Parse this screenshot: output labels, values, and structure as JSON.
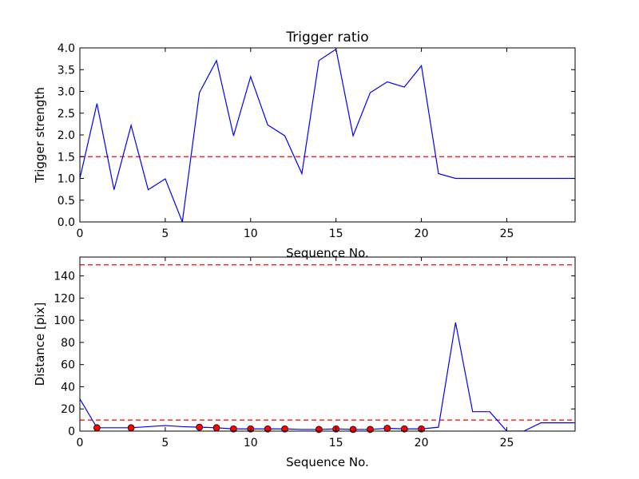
{
  "chart_data": [
    {
      "type": "line",
      "title": "Trigger ratio",
      "xlabel": "Sequence No.",
      "ylabel": "Trigger strength",
      "xlim": [
        0,
        29
      ],
      "ylim": [
        0,
        4.0
      ],
      "xticks": [
        0,
        5,
        10,
        15,
        20,
        25
      ],
      "yticks": [
        0.0,
        0.5,
        1.0,
        1.5,
        2.0,
        2.5,
        3.0,
        3.5,
        4.0
      ],
      "ytick_labels": [
        "0.0",
        "0.5",
        "1.0",
        "1.5",
        "2.0",
        "2.5",
        "3.0",
        "3.5",
        "4.0"
      ],
      "grid": false,
      "line_color": "#0000ff",
      "threshold_color": "#ff0000",
      "thresholds": [
        1.5
      ],
      "series": [
        {
          "x": [
            0,
            1,
            2,
            3,
            4,
            5,
            6,
            7,
            8,
            9,
            10,
            11,
            12,
            13,
            14,
            15,
            16,
            17,
            18,
            19,
            20,
            21,
            22,
            23,
            24,
            25,
            26,
            27,
            28,
            29
          ],
          "values": [
            1.0,
            2.72,
            0.74,
            2.22,
            0.74,
            0.99,
            0.0,
            2.97,
            3.71,
            1.98,
            3.34,
            2.23,
            1.98,
            1.11,
            3.71,
            3.97,
            1.98,
            2.97,
            3.22,
            3.1,
            3.59,
            1.11,
            1.0,
            1.0,
            1.0,
            1.0,
            1.0,
            1.0,
            1.0,
            1.0
          ]
        }
      ]
    },
    {
      "type": "line",
      "title": "",
      "xlabel": "Sequence No.",
      "ylabel": "Distance [pix]",
      "xlim": [
        0,
        29
      ],
      "ylim": [
        0,
        157
      ],
      "xticks": [
        0,
        5,
        10,
        15,
        20,
        25
      ],
      "yticks": [
        0,
        20,
        40,
        60,
        80,
        100,
        120,
        140
      ],
      "ytick_labels": [
        "0",
        "20",
        "40",
        "60",
        "80",
        "100",
        "120",
        "140"
      ],
      "grid": false,
      "line_color": "#0000ff",
      "threshold_color": "#ff0000",
      "marker_color": "#ff0000",
      "thresholds": [
        10,
        150
      ],
      "series": [
        {
          "x": [
            0,
            1,
            2,
            3,
            4,
            5,
            6,
            7,
            8,
            9,
            10,
            11,
            12,
            13,
            14,
            15,
            16,
            17,
            18,
            19,
            20,
            21,
            22,
            23,
            24,
            25,
            26,
            27,
            28,
            29
          ],
          "values": [
            29,
            3,
            3,
            3,
            4,
            5,
            4,
            3.5,
            3,
            2,
            2,
            2,
            2,
            1.5,
            1.5,
            2,
            1.5,
            1.5,
            2.5,
            2,
            2,
            3.5,
            98,
            17.5,
            17.5,
            0,
            0,
            7.5,
            7.5,
            7.5
          ]
        },
        {
          "markers": true,
          "x": [
            1,
            3,
            7,
            8,
            9,
            10,
            11,
            12,
            14,
            15,
            16,
            17,
            18,
            19,
            20
          ],
          "values": [
            3,
            3,
            3.5,
            3,
            2,
            2,
            2,
            2,
            1.5,
            2,
            1.5,
            1.5,
            2.5,
            2,
            2
          ]
        }
      ]
    }
  ]
}
